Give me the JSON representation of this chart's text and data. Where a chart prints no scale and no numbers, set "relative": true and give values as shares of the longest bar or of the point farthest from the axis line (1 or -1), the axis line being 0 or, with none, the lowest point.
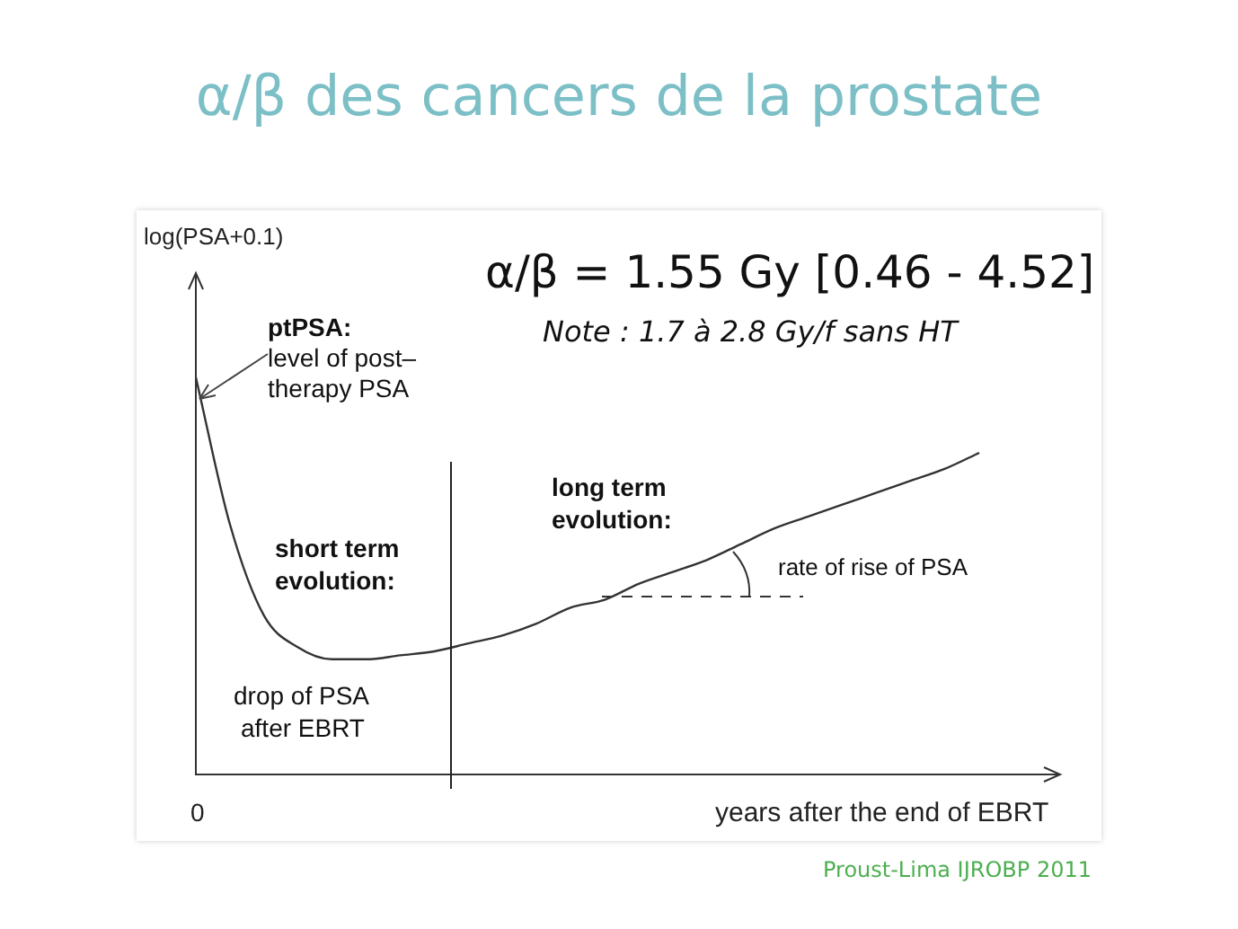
{
  "chart_data": {
    "type": "line",
    "title": "α/β des cancers de la prostate",
    "xlabel": "years after the end of EBRT",
    "categories": [
      null,
      null,
      null,
      null,
      null,
      null,
      null,
      null,
      null,
      null,
      null,
      null,
      null,
      null,
      null,
      null,
      null,
      null,
      null,
      null,
      null,
      null,
      null,
      null
    ],
    "series": [
      {
        "color": "#333333",
        "values": [
          1,
          0.63,
          0.4,
          0.32,
          0.29,
          0.29,
          0.3,
          0.31,
          0.33,
          0.35,
          0.38,
          0.42,
          0.44,
          0.48,
          0.51,
          0.54,
          0.58,
          0.62,
          0.65,
          0.68,
          0.71,
          0.74,
          0.77,
          0.81
        ]
      }
    ],
    "relative": true,
    "marker": "none",
    "line_style": "solid",
    "grid": false,
    "legend": false,
    "annotations": [
      "α/β = 1.55 Gy [0.46 - 4.52]",
      "Note : 1.7 à 2.8 Gy/f sans HT",
      "ptPSA:",
      "level of post–",
      "therapy PSA",
      "short term",
      "evolution:",
      "long term",
      "evolution:",
      "drop of PSA",
      "after EBRT",
      "rate of rise of PSA",
      "Proust-Lima IJROBP 2011",
      "0",
      "log(PSA+0.1)"
    ]
  }
}
